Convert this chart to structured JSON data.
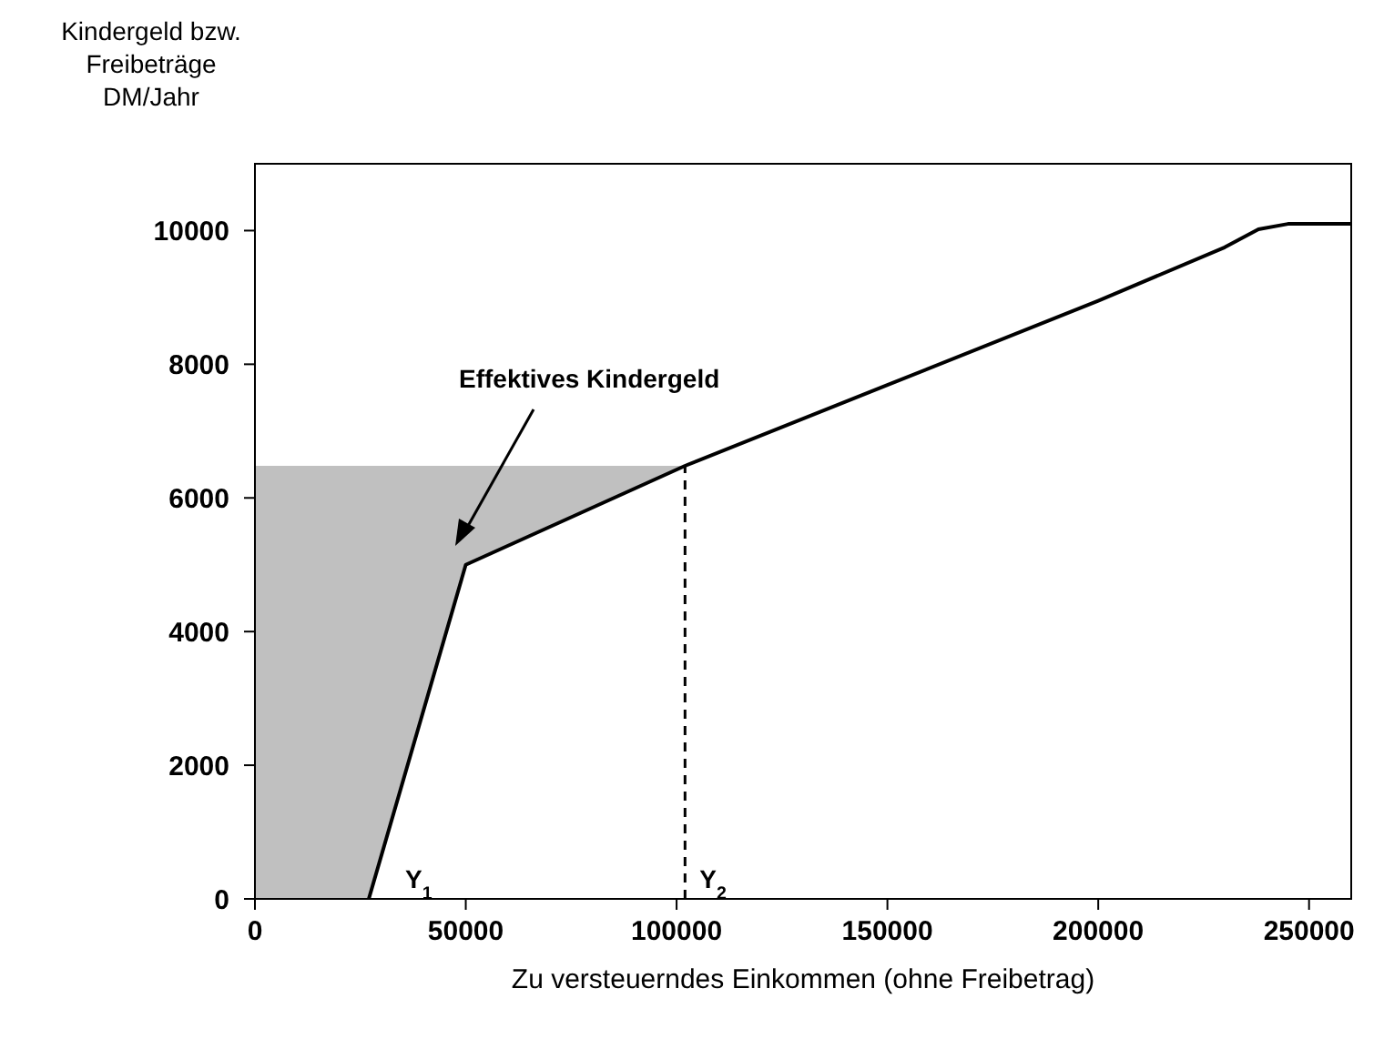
{
  "chart_data": {
    "type": "line",
    "xlabel": "Zu versteuerndes Einkommen (ohne Freibetrag)",
    "ylabel": "Kindergeld bzw.\nFreibeträge\nDM/Jahr",
    "xlim": [
      0,
      260000
    ],
    "xticks": [
      0,
      50000,
      100000,
      150000,
      200000,
      250000
    ],
    "ylim": [
      0,
      11000
    ],
    "yticks": [
      0,
      2000,
      4000,
      6000,
      8000,
      10000
    ],
    "marker": "none",
    "series": [
      {
        "type": "area",
        "color": "#c0c0c0",
        "x": [
          0,
          27000,
          50000,
          102000
        ],
        "values": [
          6480,
          6480,
          6480,
          6480
        ]
      },
      {
        "color": "#000000",
        "line_style": "solid",
        "x": [
          27000,
          50000,
          102000,
          150000,
          200000,
          230000,
          238000,
          245000,
          260000
        ],
        "values": [
          0,
          5000,
          6480,
          7690,
          8950,
          9750,
          10020,
          10100,
          10100
        ]
      }
    ],
    "ref_lines": [
      {
        "axis": "x",
        "value": 102000,
        "label": "Y$_{2}$",
        "color": "#000000",
        "line_style": "dashed"
      }
    ],
    "annotations": [
      "Effektives Kindergeld",
      {
        "text": "Y$_{1}$",
        "x": 27000,
        "y": 0
      }
    ]
  }
}
